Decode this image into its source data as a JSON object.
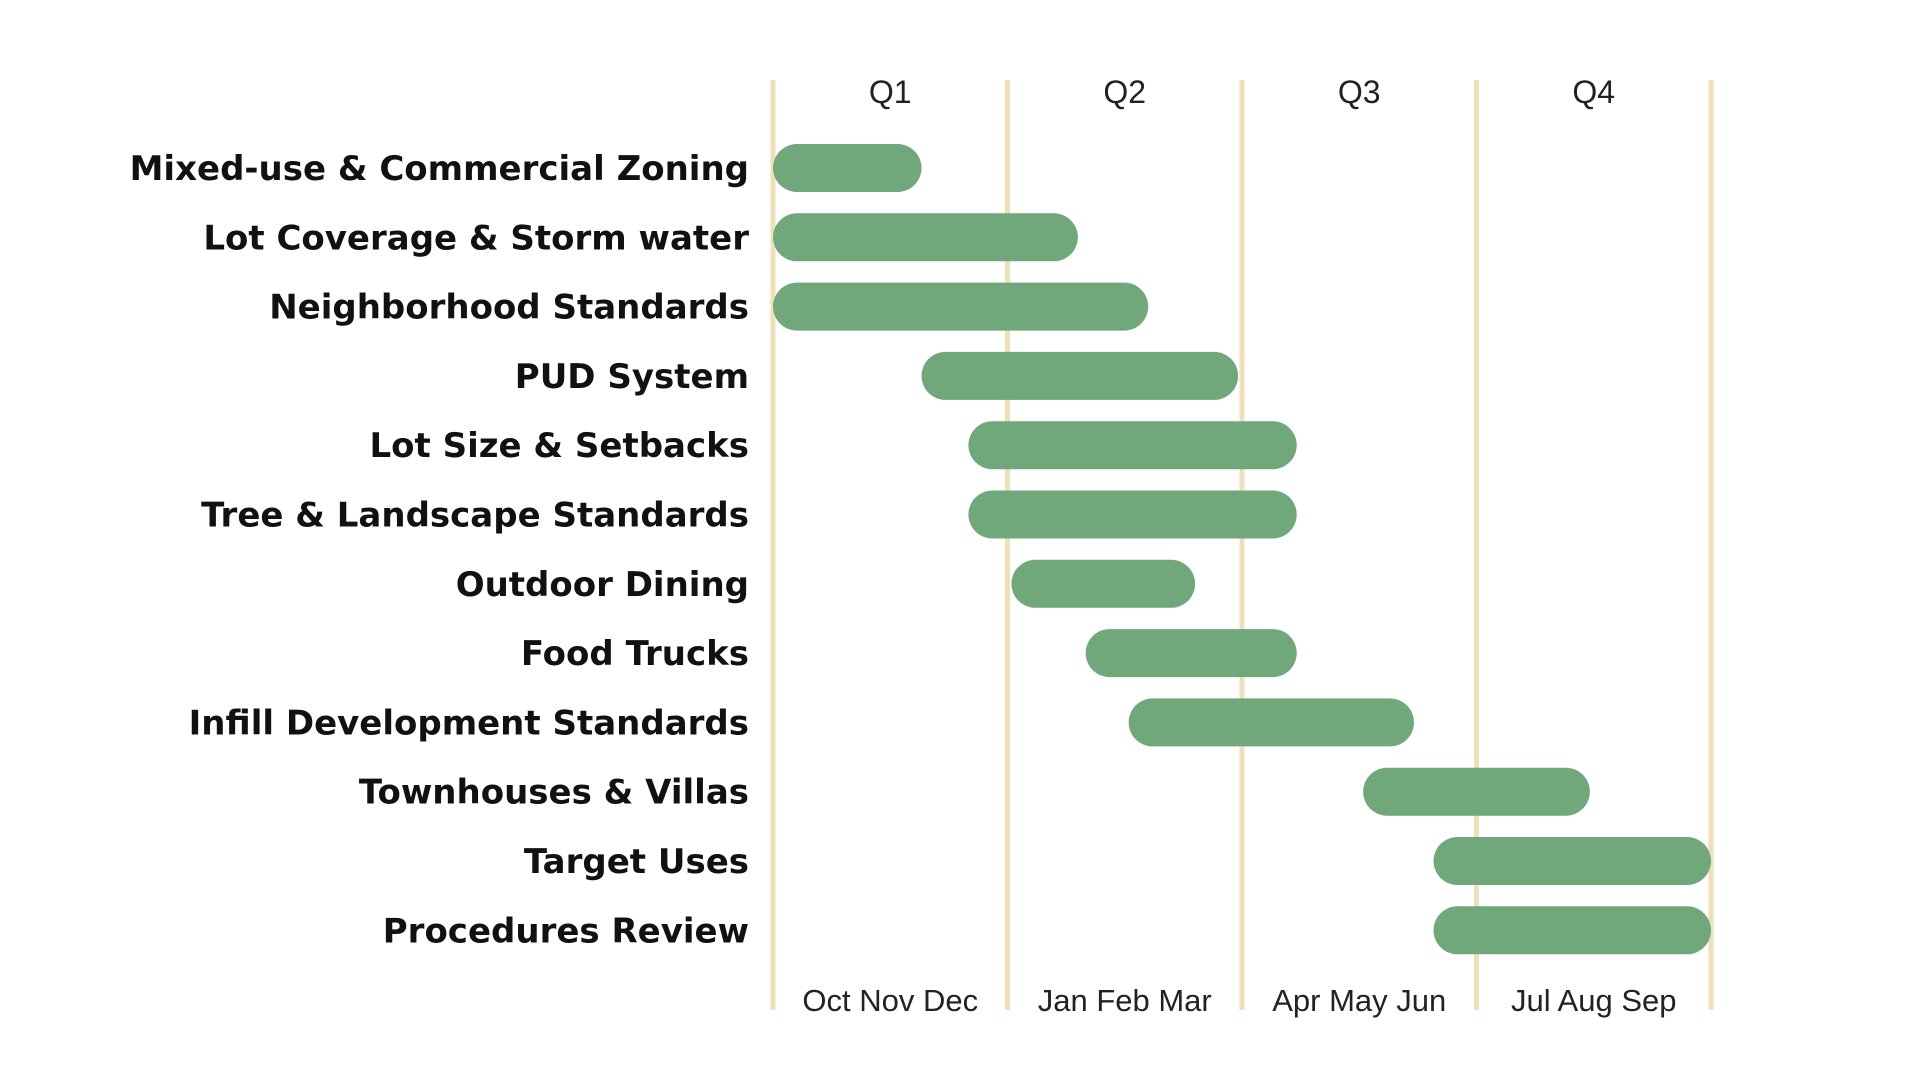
{
  "chart_data": {
    "type": "gantt",
    "title": "",
    "x_unit": "month",
    "x_range": [
      0,
      12
    ],
    "quarters": [
      {
        "label": "Q1",
        "months": "Oct Nov Dec"
      },
      {
        "label": "Q2",
        "months": "Jan Feb Mar"
      },
      {
        "label": "Q3",
        "months": "Apr May Jun"
      },
      {
        "label": "Q4",
        "months": "Jul Aug Sep"
      }
    ],
    "tasks": [
      {
        "label": "Mixed-use & Commercial Zoning",
        "start": 0.0,
        "end": 1.9
      },
      {
        "label": "Lot Coverage & Storm water",
        "start": 0.0,
        "end": 3.9
      },
      {
        "label": "Neighborhood Standards",
        "start": 0.0,
        "end": 4.8
      },
      {
        "label": "PUD System",
        "start": 1.9,
        "end": 5.95
      },
      {
        "label": "Lot Size & Setbacks",
        "start": 2.5,
        "end": 6.7
      },
      {
        "label": "Tree & Landscape Standards",
        "start": 2.5,
        "end": 6.7
      },
      {
        "label": "Outdoor Dining",
        "start": 3.05,
        "end": 5.4
      },
      {
        "label": "Food Trucks",
        "start": 4.0,
        "end": 6.7
      },
      {
        "label": "Infill Development Standards",
        "start": 4.55,
        "end": 8.2
      },
      {
        "label": "Townhouses & Villas",
        "start": 7.55,
        "end": 10.45
      },
      {
        "label": "Target Uses",
        "start": 8.45,
        "end": 12.0
      },
      {
        "label": "Procedures Review",
        "start": 8.45,
        "end": 12.0
      }
    ],
    "grid": true,
    "legend": "none",
    "colors": {
      "bar": "#70a77b",
      "divider": "#f1dfb9",
      "label_text": "#111111",
      "axis_text": "#222222"
    }
  }
}
